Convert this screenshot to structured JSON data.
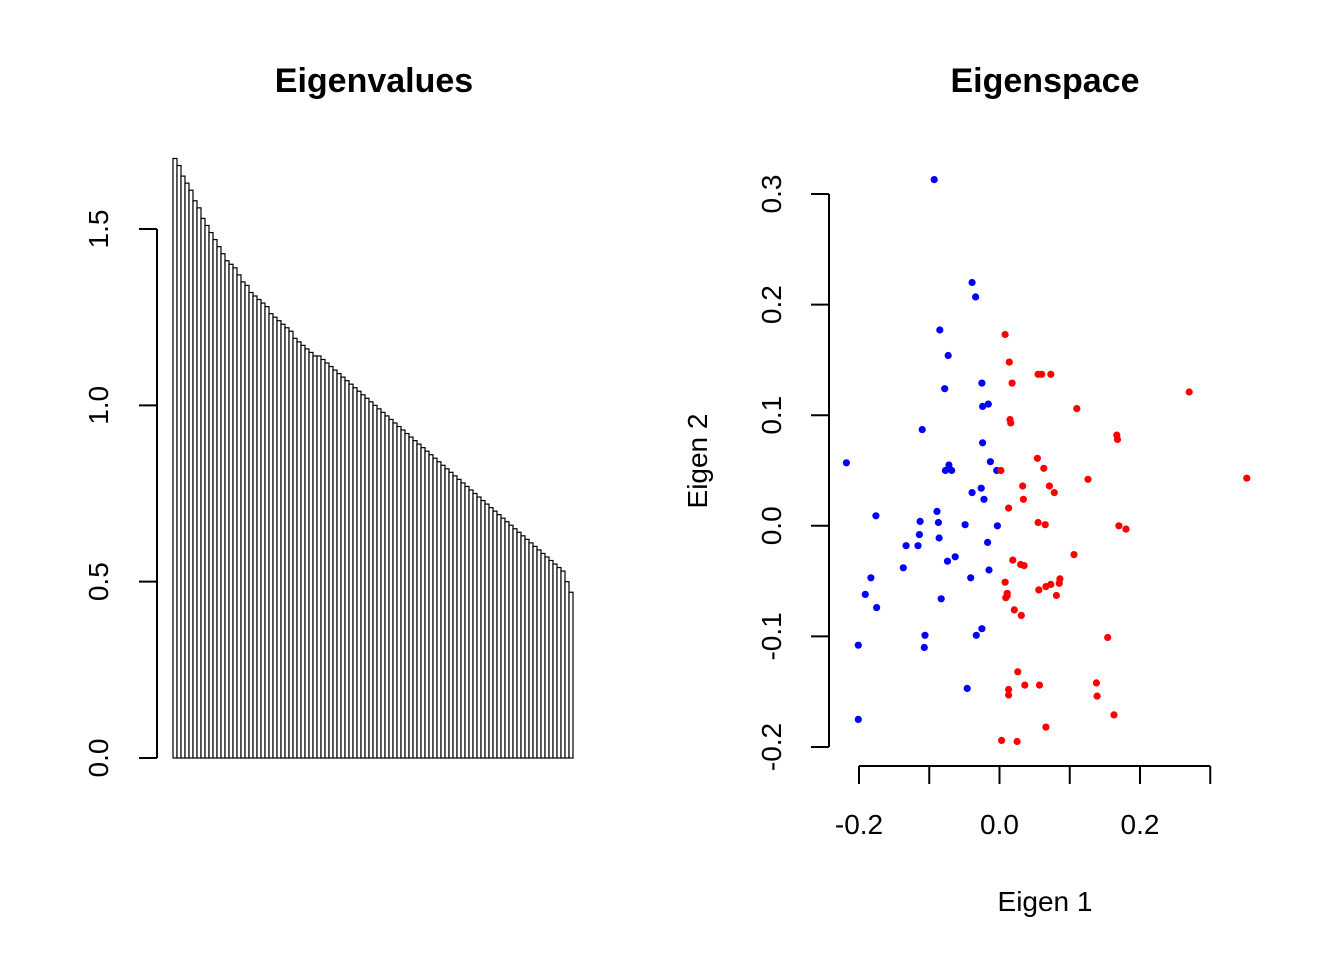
{
  "chart_data": [
    {
      "type": "bar",
      "title": "Eigenvalues",
      "xlabel": "",
      "ylabel": "",
      "ylim": [
        0,
        1.7
      ],
      "yticks": [
        0.0,
        0.5,
        1.0,
        1.5
      ],
      "ytick_labels": [
        "0.0",
        "0.5",
        "1.0",
        "1.5"
      ],
      "values": [
        1.7,
        1.68,
        1.65,
        1.63,
        1.61,
        1.58,
        1.56,
        1.53,
        1.51,
        1.49,
        1.47,
        1.45,
        1.43,
        1.41,
        1.4,
        1.39,
        1.37,
        1.35,
        1.34,
        1.32,
        1.31,
        1.3,
        1.29,
        1.28,
        1.26,
        1.25,
        1.24,
        1.23,
        1.22,
        1.21,
        1.19,
        1.18,
        1.17,
        1.16,
        1.15,
        1.14,
        1.14,
        1.13,
        1.12,
        1.11,
        1.1,
        1.09,
        1.08,
        1.07,
        1.06,
        1.05,
        1.04,
        1.03,
        1.02,
        1.01,
        1.0,
        0.99,
        0.98,
        0.97,
        0.96,
        0.95,
        0.94,
        0.93,
        0.92,
        0.91,
        0.9,
        0.89,
        0.88,
        0.87,
        0.86,
        0.85,
        0.84,
        0.83,
        0.82,
        0.81,
        0.8,
        0.79,
        0.78,
        0.77,
        0.76,
        0.75,
        0.74,
        0.73,
        0.72,
        0.71,
        0.7,
        0.69,
        0.68,
        0.67,
        0.66,
        0.65,
        0.64,
        0.63,
        0.62,
        0.61,
        0.6,
        0.59,
        0.58,
        0.57,
        0.56,
        0.55,
        0.54,
        0.53,
        0.5,
        0.47
      ],
      "grid": false
    },
    {
      "type": "scatter",
      "title": "Eigenspace",
      "xlabel": "Eigen 1",
      "ylabel": "Eigen 2",
      "xlim": [
        -0.25,
        0.35
      ],
      "ylim": [
        -0.2,
        0.3
      ],
      "xticks": [
        -0.2,
        -0.1,
        0.0,
        0.1,
        0.2,
        0.3
      ],
      "xtick_labels": [
        "-0.2",
        "",
        "0.0",
        "",
        "0.2",
        ""
      ],
      "yticks": [
        -0.2,
        -0.1,
        0.0,
        0.1,
        0.2,
        0.3
      ],
      "ytick_labels": [
        "-0.2",
        "-0.1",
        "0.0",
        "0.1",
        "0.2",
        "0.3"
      ],
      "grid": false,
      "series": [
        {
          "color": "#0000ff",
          "points": [
            [
              -0.093,
              0.313
            ],
            [
              -0.039,
              0.22
            ],
            [
              -0.034,
              0.207
            ],
            [
              -0.085,
              0.177
            ],
            [
              -0.073,
              0.154
            ],
            [
              -0.025,
              0.129
            ],
            [
              -0.078,
              0.124
            ],
            [
              -0.024,
              0.108
            ],
            [
              -0.016,
              0.11
            ],
            [
              -0.11,
              0.087
            ],
            [
              -0.024,
              0.075
            ],
            [
              -0.013,
              0.058
            ],
            [
              -0.072,
              0.055
            ],
            [
              -0.077,
              0.05
            ],
            [
              -0.068,
              0.05
            ],
            [
              -0.004,
              0.05
            ],
            [
              -0.218,
              0.057
            ],
            [
              -0.026,
              0.034
            ],
            [
              -0.039,
              0.03
            ],
            [
              -0.022,
              0.024
            ],
            [
              -0.176,
              0.009
            ],
            [
              -0.089,
              0.013
            ],
            [
              -0.113,
              0.004
            ],
            [
              -0.087,
              0.003
            ],
            [
              -0.049,
              0.001
            ],
            [
              -0.003,
              0.0
            ],
            [
              -0.114,
              -0.008
            ],
            [
              -0.086,
              -0.011
            ],
            [
              -0.133,
              -0.018
            ],
            [
              -0.116,
              -0.018
            ],
            [
              -0.017,
              -0.015
            ],
            [
              -0.063,
              -0.028
            ],
            [
              -0.074,
              -0.032
            ],
            [
              -0.137,
              -0.038
            ],
            [
              -0.015,
              -0.04
            ],
            [
              -0.041,
              -0.047
            ],
            [
              -0.183,
              -0.047
            ],
            [
              -0.191,
              -0.062
            ],
            [
              -0.083,
              -0.066
            ],
            [
              -0.175,
              -0.074
            ],
            [
              -0.025,
              -0.093
            ],
            [
              -0.033,
              -0.099
            ],
            [
              -0.106,
              -0.099
            ],
            [
              -0.201,
              -0.108
            ],
            [
              -0.107,
              -0.11
            ],
            [
              -0.046,
              -0.147
            ],
            [
              -0.201,
              -0.175
            ]
          ]
        },
        {
          "color": "#ff0000",
          "points": [
            [
              0.008,
              0.173
            ],
            [
              0.014,
              0.148
            ],
            [
              0.018,
              0.129
            ],
            [
              0.055,
              0.137
            ],
            [
              0.06,
              0.137
            ],
            [
              0.073,
              0.137
            ],
            [
              0.27,
              0.121
            ],
            [
              0.11,
              0.106
            ],
            [
              0.015,
              0.096
            ],
            [
              0.016,
              0.093
            ],
            [
              0.167,
              0.082
            ],
            [
              0.168,
              0.078
            ],
            [
              0.054,
              0.061
            ],
            [
              0.063,
              0.052
            ],
            [
              0.002,
              0.05
            ],
            [
              0.352,
              0.043
            ],
            [
              0.126,
              0.042
            ],
            [
              0.033,
              0.036
            ],
            [
              0.071,
              0.036
            ],
            [
              0.078,
              0.03
            ],
            [
              0.034,
              0.024
            ],
            [
              0.013,
              0.016
            ],
            [
              0.055,
              0.003
            ],
            [
              0.065,
              0.001
            ],
            [
              0.17,
              0.0
            ],
            [
              0.18,
              -0.003
            ],
            [
              0.106,
              -0.026
            ],
            [
              0.019,
              -0.031
            ],
            [
              0.03,
              -0.035
            ],
            [
              0.035,
              -0.036
            ],
            [
              0.086,
              -0.048
            ],
            [
              0.085,
              -0.052
            ],
            [
              0.008,
              -0.051
            ],
            [
              0.073,
              -0.053
            ],
            [
              0.066,
              -0.055
            ],
            [
              0.056,
              -0.058
            ],
            [
              0.011,
              -0.061
            ],
            [
              0.011,
              -0.063
            ],
            [
              0.009,
              -0.065
            ],
            [
              0.081,
              -0.063
            ],
            [
              0.021,
              -0.076
            ],
            [
              0.031,
              -0.081
            ],
            [
              0.154,
              -0.101
            ],
            [
              0.026,
              -0.132
            ],
            [
              0.138,
              -0.142
            ],
            [
              0.036,
              -0.144
            ],
            [
              0.057,
              -0.144
            ],
            [
              0.013,
              -0.148
            ],
            [
              0.139,
              -0.154
            ],
            [
              0.013,
              -0.153
            ],
            [
              0.163,
              -0.171
            ],
            [
              0.066,
              -0.182
            ],
            [
              0.003,
              -0.194
            ],
            [
              0.025,
              -0.195
            ]
          ]
        }
      ]
    }
  ]
}
